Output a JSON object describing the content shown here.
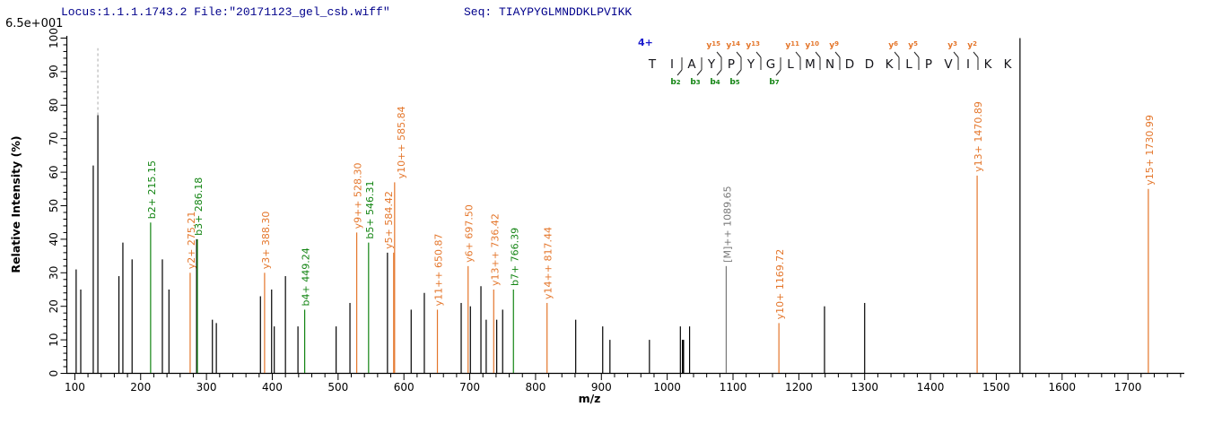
{
  "header": {
    "locus_file": "Locus:1.1.1.1743.2 File:\"20171123_gel_csb.wiff\"",
    "seq": "Seq: TIAYPYGLMNDDKLPVIKK"
  },
  "scale_label": "6.5e+001",
  "colors": {
    "y_ion": "#e4762b",
    "b_ion": "#128412",
    "precursor": "#777777",
    "peak": "#000000",
    "navy": "#00008b",
    "charge_blue": "#1a1acd",
    "dashed": "#b8b8b8",
    "sequence_letter": "#15151a",
    "axis": "#000000"
  },
  "axes": {
    "x": {
      "label": "m/z",
      "major_tick_labels": [
        "100",
        "200",
        "300",
        "400",
        "500",
        "600",
        "700",
        "800",
        "900",
        "1000",
        "1100",
        "1200",
        "1300",
        "1400",
        "1500",
        "1600",
        "1700"
      ],
      "major_step": 100,
      "minor_step": 20,
      "min": 100,
      "max": 1780
    },
    "y": {
      "label": "Relative  Intensity  (%)",
      "major_tick_labels": [
        "0",
        "10",
        "20",
        "30",
        "40",
        "50",
        "60",
        "70",
        "80",
        "90",
        "100"
      ],
      "major_step": 10,
      "minor_step": 2,
      "min": 0,
      "max": 100
    }
  },
  "chart_data": {
    "type": "bar",
    "subtype": "ms2-centroid-spectrum",
    "xlabel": "m/z",
    "ylabel": "Relative  Intensity  (%)",
    "xlim": [
      100,
      1780
    ],
    "ylim": [
      0,
      100
    ],
    "offscale_marker": {
      "mz": 135,
      "from_pct": 77,
      "to_pct": 97
    },
    "peaks": [
      {
        "mz": 102,
        "pct": 31,
        "series": "unassigned",
        "label": null
      },
      {
        "mz": 109,
        "pct": 25,
        "series": "unassigned",
        "label": null
      },
      {
        "mz": 128,
        "pct": 62,
        "series": "unassigned",
        "label": null
      },
      {
        "mz": 135,
        "pct": 77,
        "series": "unassigned",
        "label": null
      },
      {
        "mz": 167,
        "pct": 29,
        "series": "unassigned",
        "label": null
      },
      {
        "mz": 173,
        "pct": 39,
        "series": "unassigned",
        "label": null
      },
      {
        "mz": 187,
        "pct": 34,
        "series": "unassigned",
        "label": null
      },
      {
        "mz": 215.15,
        "pct": 45,
        "series": "b",
        "label": "b2+ 215.15"
      },
      {
        "mz": 233,
        "pct": 34,
        "series": "unassigned",
        "label": null
      },
      {
        "mz": 243,
        "pct": 25,
        "series": "unassigned",
        "label": null
      },
      {
        "mz": 275.21,
        "pct": 30,
        "series": "y",
        "label": "y2+ 275.21"
      },
      {
        "mz": 285,
        "pct": 40,
        "series": "unassigned",
        "label": null
      },
      {
        "mz": 286.18,
        "pct": 40,
        "series": "b",
        "label": "b3+ 286.18"
      },
      {
        "mz": 309,
        "pct": 16,
        "series": "unassigned",
        "label": null
      },
      {
        "mz": 315,
        "pct": 15,
        "series": "unassigned",
        "label": null
      },
      {
        "mz": 382,
        "pct": 23,
        "series": "unassigned",
        "label": null
      },
      {
        "mz": 388.3,
        "pct": 30,
        "series": "y",
        "label": "y3+ 388.30"
      },
      {
        "mz": 399,
        "pct": 25,
        "series": "unassigned",
        "label": null
      },
      {
        "mz": 403,
        "pct": 14,
        "series": "unassigned",
        "label": null
      },
      {
        "mz": 420,
        "pct": 29,
        "series": "unassigned",
        "label": null
      },
      {
        "mz": 439,
        "pct": 14,
        "series": "unassigned",
        "label": null
      },
      {
        "mz": 449.24,
        "pct": 19,
        "series": "b",
        "label": "b4+ 449.24"
      },
      {
        "mz": 497,
        "pct": 14,
        "series": "unassigned",
        "label": null
      },
      {
        "mz": 518,
        "pct": 21,
        "series": "unassigned",
        "label": null
      },
      {
        "mz": 528.3,
        "pct": 42,
        "series": "y",
        "label": "y9++ 528.30"
      },
      {
        "mz": 546.31,
        "pct": 39,
        "series": "b",
        "label": "b5+ 546.31"
      },
      {
        "mz": 575,
        "pct": 36,
        "series": "unassigned",
        "label": null
      },
      {
        "mz": 584.42,
        "pct": 36,
        "series": "y",
        "label": "y5+ 584.42",
        "label_dx": -7
      },
      {
        "mz": 585.84,
        "pct": 57,
        "series": "y",
        "label": "y10++ 585.84",
        "label_dx": 6
      },
      {
        "mz": 611,
        "pct": 19,
        "series": "unassigned",
        "label": null
      },
      {
        "mz": 631,
        "pct": 24,
        "series": "unassigned",
        "label": null
      },
      {
        "mz": 650.87,
        "pct": 19,
        "series": "y",
        "label": "y11++ 650.87"
      },
      {
        "mz": 687,
        "pct": 21,
        "series": "unassigned",
        "label": null
      },
      {
        "mz": 697.5,
        "pct": 32,
        "series": "y",
        "label": "y6+ 697.50"
      },
      {
        "mz": 701,
        "pct": 20,
        "series": "unassigned",
        "label": null
      },
      {
        "mz": 717,
        "pct": 26,
        "series": "unassigned",
        "label": null
      },
      {
        "mz": 725,
        "pct": 16,
        "series": "unassigned",
        "label": null
      },
      {
        "mz": 736.42,
        "pct": 25,
        "series": "y",
        "label": "y13++ 736.42"
      },
      {
        "mz": 741,
        "pct": 16,
        "series": "unassigned",
        "label": null
      },
      {
        "mz": 750,
        "pct": 19,
        "series": "unassigned",
        "label": null
      },
      {
        "mz": 766.39,
        "pct": 25,
        "series": "b",
        "label": "b7+ 766.39"
      },
      {
        "mz": 817.44,
        "pct": 21,
        "series": "y",
        "label": "y14++ 817.44"
      },
      {
        "mz": 861,
        "pct": 16,
        "series": "unassigned",
        "label": null
      },
      {
        "mz": 902,
        "pct": 14,
        "series": "unassigned",
        "label": null
      },
      {
        "mz": 913,
        "pct": 10,
        "series": "unassigned",
        "label": null
      },
      {
        "mz": 973,
        "pct": 10,
        "series": "unassigned",
        "label": null
      },
      {
        "mz": 1020,
        "pct": 14,
        "series": "unassigned",
        "label": null
      },
      {
        "mz": 1024,
        "pct": 10,
        "series": "unassigned",
        "label": null,
        "w": 2.5
      },
      {
        "mz": 1034,
        "pct": 14,
        "series": "unassigned",
        "label": null
      },
      {
        "mz": 1089.65,
        "pct": 32,
        "series": "precursor",
        "label": "[M]++ 1089.65"
      },
      {
        "mz": 1169.72,
        "pct": 15,
        "series": "y",
        "label": "y10+ 1169.72"
      },
      {
        "mz": 1239,
        "pct": 20,
        "series": "unassigned",
        "label": null
      },
      {
        "mz": 1300,
        "pct": 21,
        "series": "unassigned",
        "label": null
      },
      {
        "mz": 1470.89,
        "pct": 59,
        "series": "y",
        "label": "y13+ 1470.89"
      },
      {
        "mz": 1536,
        "pct": 100,
        "series": "unassigned",
        "label": null
      },
      {
        "mz": 1730.99,
        "pct": 55,
        "series": "y",
        "label": "y15+ 1730.99"
      }
    ]
  },
  "sequence_panel": {
    "charge": "4+",
    "residues": [
      "T",
      "I",
      "A",
      "Y",
      "P",
      "Y",
      "G",
      "L",
      "M",
      "N",
      "D",
      "D",
      "K",
      "L",
      "P",
      "V",
      "I",
      "K",
      "K"
    ],
    "y_ions": [
      {
        "label": "y15",
        "num": "15",
        "boundary": 4
      },
      {
        "label": "y14",
        "num": "14",
        "boundary": 5
      },
      {
        "label": "y13",
        "num": "13",
        "boundary": 6
      },
      {
        "label": "y11",
        "num": "11",
        "boundary": 8
      },
      {
        "label": "y10",
        "num": "10",
        "boundary": 9
      },
      {
        "label": "y9",
        "num": "9",
        "boundary": 10
      },
      {
        "label": "y6",
        "num": "6",
        "boundary": 13
      },
      {
        "label": "y5",
        "num": "5",
        "boundary": 14
      },
      {
        "label": "y3",
        "num": "3",
        "boundary": 16
      },
      {
        "label": "y2",
        "num": "2",
        "boundary": 17
      }
    ],
    "b_ions": [
      {
        "label": "b2",
        "num": "2",
        "boundary": 2
      },
      {
        "label": "b3",
        "num": "3",
        "boundary": 3
      },
      {
        "label": "b4",
        "num": "4",
        "boundary": 4
      },
      {
        "label": "b5",
        "num": "5",
        "boundary": 5
      },
      {
        "label": "b7",
        "num": "7",
        "boundary": 7
      }
    ]
  }
}
